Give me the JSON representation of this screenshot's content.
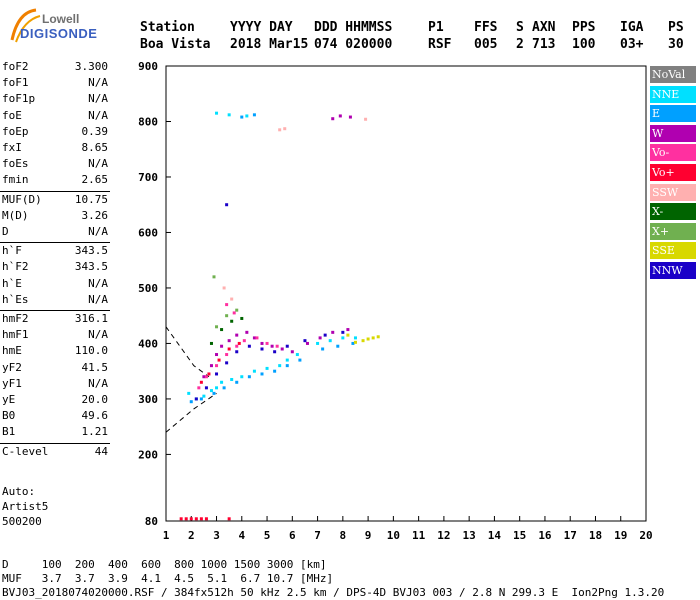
{
  "logo": {
    "line1": "Lowell",
    "line2": "DIGISONDE"
  },
  "header": {
    "labels": [
      "Station",
      "YYYY DAY",
      "DDD HHMMSS",
      "P1",
      "FFS",
      "S",
      "AXN",
      "PPS",
      "IGA",
      "PS"
    ],
    "values": [
      "Boa Vista",
      "2018 Mar15",
      "074 020000",
      "RSF",
      "005",
      "2",
      "713",
      "100",
      "03+",
      "30"
    ]
  },
  "params": [
    {
      "key": "foF2",
      "value": "3.300"
    },
    {
      "key": "foF1",
      "value": "N/A"
    },
    {
      "key": "foF1p",
      "value": "N/A"
    },
    {
      "key": "foE",
      "value": "N/A"
    },
    {
      "key": "foEp",
      "value": "0.39"
    },
    {
      "key": "fxI",
      "value": "8.65"
    },
    {
      "key": "foEs",
      "value": "N/A"
    },
    {
      "key": "fmin",
      "value": "2.65"
    },
    {
      "key": "MUF(D)",
      "value": "10.75"
    },
    {
      "key": "M(D)",
      "value": "3.26"
    },
    {
      "key": "D",
      "value": "N/A"
    },
    {
      "key": "h`F",
      "value": "343.5"
    },
    {
      "key": "h`F2",
      "value": "343.5"
    },
    {
      "key": "h`E",
      "value": "N/A"
    },
    {
      "key": "h`Es",
      "value": "N/A"
    },
    {
      "key": "hmF2",
      "value": "316.1"
    },
    {
      "key": "hmF1",
      "value": "N/A"
    },
    {
      "key": "hmE",
      "value": "110.0"
    },
    {
      "key": "yF2",
      "value": "41.5"
    },
    {
      "key": "yF1",
      "value": "N/A"
    },
    {
      "key": "yE",
      "value": "20.0"
    },
    {
      "key": "B0",
      "value": "49.6"
    },
    {
      "key": "B1",
      "value": "1.21"
    },
    {
      "key": "C-level",
      "value": "44"
    }
  ],
  "auto": {
    "line1": "Auto:",
    "line2": "Artist5",
    "line3": "500200"
  },
  "legend": [
    {
      "label": "NoVal",
      "color": "#808080"
    },
    {
      "label": "NNE",
      "color": "#00e0ff"
    },
    {
      "label": "E",
      "color": "#00a0ff"
    },
    {
      "label": "W",
      "color": "#b000b0"
    },
    {
      "label": "Vo-",
      "color": "#ff30a0"
    },
    {
      "label": "Vo+",
      "color": "#ff0030"
    },
    {
      "label": "SSW",
      "color": "#ffb0b0"
    },
    {
      "label": "X-",
      "color": "#006400"
    },
    {
      "label": "X+",
      "color": "#70b050"
    },
    {
      "label": "SSE",
      "color": "#d8d800"
    },
    {
      "label": "NNW",
      "color": "#1a00c8"
    }
  ],
  "chart_data": {
    "type": "scatter",
    "xlabel": "",
    "ylabel": "",
    "xlim": [
      1,
      20
    ],
    "ylim": [
      80,
      900
    ],
    "x_ticks": [
      1,
      2,
      3,
      4,
      5,
      6,
      7,
      8,
      9,
      10,
      11,
      12,
      13,
      14,
      15,
      16,
      17,
      18,
      19,
      20
    ],
    "y_ticks": [
      80,
      200,
      300,
      400,
      500,
      600,
      700,
      800,
      900
    ],
    "grid": false,
    "series": [
      {
        "name": "NNE",
        "color": "#00e0ff",
        "points": [
          [
            1.9,
            310
          ],
          [
            2.2,
            300
          ],
          [
            2.5,
            305
          ],
          [
            2.8,
            315
          ],
          [
            3.0,
            320
          ],
          [
            3.2,
            330
          ],
          [
            3.6,
            335
          ],
          [
            4.0,
            340
          ],
          [
            4.5,
            350
          ],
          [
            5.0,
            355
          ],
          [
            5.5,
            360
          ],
          [
            5.8,
            370
          ],
          [
            6.2,
            380
          ],
          [
            7.0,
            400
          ],
          [
            7.5,
            405
          ],
          [
            8.0,
            410
          ],
          [
            8.5,
            410
          ],
          [
            3.0,
            815
          ],
          [
            3.5,
            812
          ],
          [
            4.2,
            810
          ]
        ]
      },
      {
        "name": "E",
        "color": "#00a0ff",
        "points": [
          [
            2.0,
            295
          ],
          [
            2.4,
            300
          ],
          [
            2.9,
            310
          ],
          [
            3.3,
            320
          ],
          [
            3.8,
            330
          ],
          [
            4.3,
            340
          ],
          [
            4.8,
            345
          ],
          [
            5.3,
            350
          ],
          [
            5.8,
            360
          ],
          [
            6.3,
            370
          ],
          [
            7.2,
            390
          ],
          [
            7.8,
            395
          ],
          [
            8.4,
            400
          ],
          [
            4.0,
            808
          ],
          [
            4.5,
            812
          ]
        ]
      },
      {
        "name": "W",
        "color": "#b000b0",
        "points": [
          [
            2.5,
            340
          ],
          [
            2.8,
            360
          ],
          [
            3.0,
            380
          ],
          [
            3.2,
            395
          ],
          [
            3.5,
            405
          ],
          [
            3.8,
            415
          ],
          [
            4.2,
            420
          ],
          [
            4.5,
            410
          ],
          [
            4.8,
            400
          ],
          [
            5.2,
            395
          ],
          [
            5.6,
            390
          ],
          [
            6.0,
            385
          ],
          [
            6.6,
            400
          ],
          [
            7.1,
            410
          ],
          [
            7.6,
            420
          ],
          [
            8.2,
            425
          ],
          [
            7.6,
            805
          ],
          [
            7.9,
            810
          ],
          [
            8.3,
            808
          ]
        ]
      },
      {
        "name": "Vo-",
        "color": "#ff30a0",
        "points": [
          [
            2.3,
            320
          ],
          [
            2.6,
            340
          ],
          [
            3.0,
            360
          ],
          [
            3.4,
            380
          ],
          [
            3.8,
            395
          ],
          [
            4.1,
            405
          ],
          [
            4.6,
            410
          ],
          [
            5.0,
            400
          ],
          [
            5.4,
            395
          ],
          [
            3.4,
            470
          ],
          [
            3.7,
            455
          ]
        ]
      },
      {
        "name": "Vo+",
        "color": "#ff0030",
        "points": [
          [
            2.4,
            330
          ],
          [
            2.7,
            345
          ],
          [
            3.1,
            370
          ],
          [
            3.5,
            390
          ],
          [
            3.9,
            400
          ],
          [
            1.6,
            84
          ],
          [
            1.8,
            84
          ],
          [
            2.0,
            84
          ],
          [
            2.2,
            84
          ],
          [
            2.4,
            84
          ],
          [
            2.6,
            84
          ],
          [
            3.5,
            84
          ]
        ]
      },
      {
        "name": "SSW",
        "color": "#ffb0b0",
        "points": [
          [
            3.3,
            500
          ],
          [
            3.6,
            480
          ],
          [
            5.5,
            785
          ],
          [
            5.7,
            787
          ],
          [
            8.9,
            804
          ]
        ]
      },
      {
        "name": "X-",
        "color": "#006400",
        "points": [
          [
            2.8,
            400
          ],
          [
            3.2,
            425
          ],
          [
            3.6,
            440
          ],
          [
            4.0,
            445
          ]
        ]
      },
      {
        "name": "X+",
        "color": "#70b050",
        "points": [
          [
            3.0,
            430
          ],
          [
            3.4,
            450
          ],
          [
            3.8,
            460
          ],
          [
            2.9,
            520
          ]
        ]
      },
      {
        "name": "SSE",
        "color": "#d8d800",
        "points": [
          [
            8.5,
            402
          ],
          [
            8.8,
            405
          ],
          [
            9.0,
            408
          ],
          [
            9.2,
            410
          ],
          [
            9.4,
            412
          ],
          [
            8.2,
            415
          ]
        ]
      },
      {
        "name": "NNW",
        "color": "#1a00c8",
        "points": [
          [
            2.2,
            300
          ],
          [
            2.6,
            320
          ],
          [
            3.0,
            345
          ],
          [
            3.4,
            365
          ],
          [
            3.8,
            385
          ],
          [
            4.3,
            395
          ],
          [
            4.8,
            390
          ],
          [
            5.3,
            385
          ],
          [
            5.8,
            395
          ],
          [
            6.5,
            405
          ],
          [
            7.3,
            415
          ],
          [
            8.0,
            420
          ],
          [
            3.4,
            650
          ]
        ]
      }
    ],
    "trace_lines": [
      {
        "style": "dashed",
        "points": [
          [
            1.0,
            430
          ],
          [
            2.1,
            360
          ],
          [
            2.7,
            340
          ]
        ]
      },
      {
        "style": "dashed",
        "points": [
          [
            1.0,
            240
          ],
          [
            2.1,
            282
          ],
          [
            3.0,
            310
          ]
        ]
      }
    ]
  },
  "footer": {
    "line1": "D     100  200  400  600  800 1000 1500 3000 [km]",
    "line2": "MUF   3.7  3.7  3.9  4.1  4.5  5.1  6.7 10.7 [MHz]",
    "line3": "BVJ03_2018074020000.RSF / 384fx512h 50 kHz 2.5 km / DPS-4D BVJ03 003 / 2.8 N 299.3 E  Ion2Png 1.3.20"
  }
}
